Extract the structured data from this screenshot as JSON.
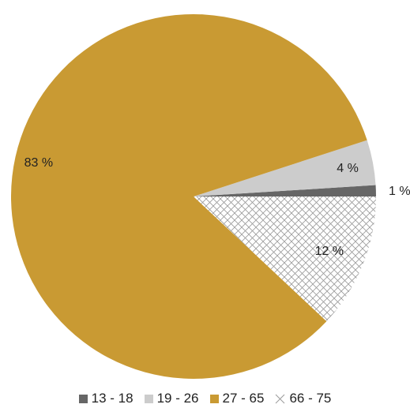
{
  "chart_data": {
    "type": "pie",
    "title": "",
    "slices": [
      {
        "label": "13 - 18",
        "value": 1,
        "display": "1 %",
        "color": "#666666",
        "pattern": "solid"
      },
      {
        "label": "19 - 26",
        "value": 4,
        "display": "4 %",
        "color": "#cccccc",
        "pattern": "solid"
      },
      {
        "label": "27 - 65",
        "value": 83,
        "display": "83 %",
        "color": "#c99a33",
        "pattern": "solid"
      },
      {
        "label": "66 - 75",
        "value": 12,
        "display": "12 %",
        "color": "#9a9a9a",
        "pattern": "crosshatch"
      }
    ],
    "legend_position": "bottom"
  }
}
